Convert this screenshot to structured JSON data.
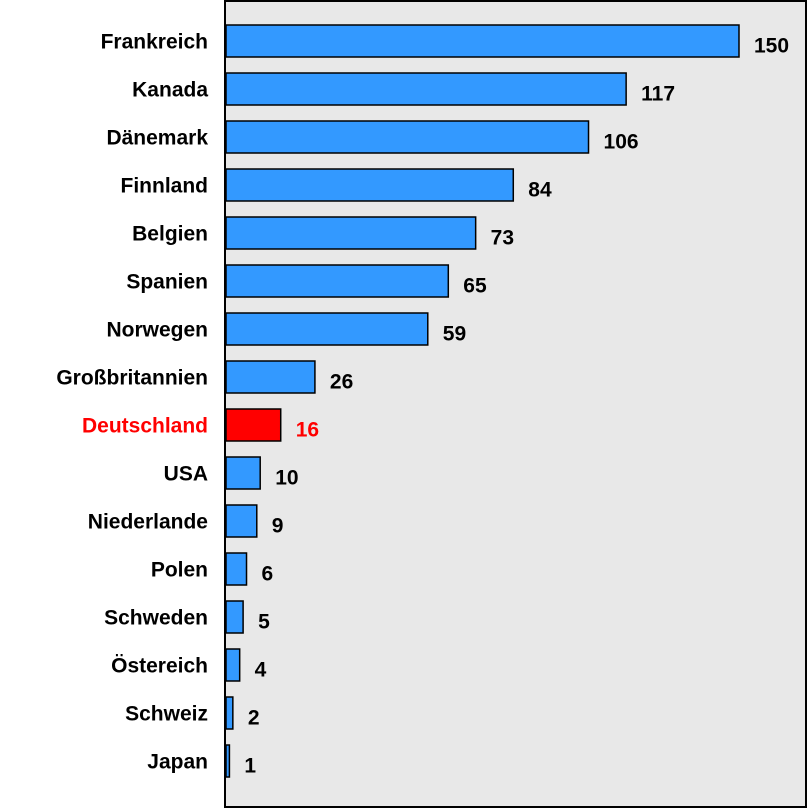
{
  "chart_data": {
    "type": "hbar",
    "categories": [
      "Frankreich",
      "Kanada",
      "Dänemark",
      "Finnland",
      "Belgien",
      "Spanien",
      "Norwegen",
      "Großbritannien",
      "Deutschland",
      "USA",
      "Niederlande",
      "Polen",
      "Schweden",
      "Östereich",
      "Schweiz",
      "Japan"
    ],
    "values": [
      150,
      117,
      106,
      84,
      73,
      65,
      59,
      26,
      16,
      10,
      9,
      6,
      5,
      4,
      2,
      1
    ],
    "colors": [
      "#3399ff",
      "#3399ff",
      "#3399ff",
      "#3399ff",
      "#3399ff",
      "#3399ff",
      "#3399ff",
      "#3399ff",
      "#ff0000",
      "#3399ff",
      "#3399ff",
      "#3399ff",
      "#3399ff",
      "#3399ff",
      "#3399ff",
      "#3399ff"
    ],
    "label_colors": [
      "#000000",
      "#000000",
      "#000000",
      "#000000",
      "#000000",
      "#000000",
      "#000000",
      "#000000",
      "#ff0000",
      "#000000",
      "#000000",
      "#000000",
      "#000000",
      "#000000",
      "#000000",
      "#000000"
    ],
    "plot_background": "#e8e8e8"
  }
}
